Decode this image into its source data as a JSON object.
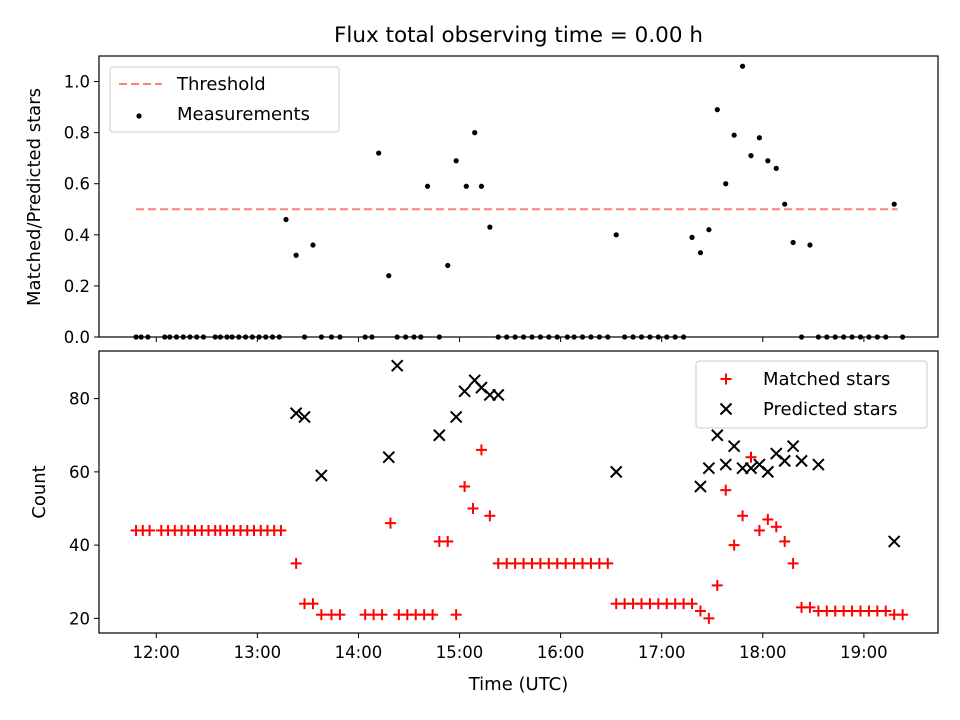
{
  "title": "Flux total observing time = 0.00 h",
  "x_axis": {
    "label": "Time (UTC)",
    "ticks": [
      {
        "label": "12:00",
        "h": 12
      },
      {
        "label": "13:00",
        "h": 13
      },
      {
        "label": "14:00",
        "h": 14
      },
      {
        "label": "15:00",
        "h": 15
      },
      {
        "label": "16:00",
        "h": 16
      },
      {
        "label": "17:00",
        "h": 17
      },
      {
        "label": "18:00",
        "h": 18
      },
      {
        "label": "19:00",
        "h": 19
      }
    ],
    "range": [
      "11:26",
      "19:44"
    ]
  },
  "colors": {
    "threshold": "#ff7f7f",
    "measurements": "#000000",
    "matched": "#ff0000",
    "predicted": "#000000"
  },
  "chart_data": [
    {
      "type": "scatter",
      "ylabel": "Matched/Predicted stars",
      "ylim": [
        0,
        1.1
      ],
      "yticks": [
        "0.0",
        "0.2",
        "0.4",
        "0.6",
        "0.8",
        "1.0"
      ],
      "legend_position": "upper-left",
      "threshold": {
        "name": "Threshold",
        "value": 0.5,
        "x_start": "11:48",
        "x_end": "19:20"
      },
      "series": [
        {
          "name": "Measurements",
          "x": [
            "11:48",
            "11:51",
            "11:55",
            "12:05",
            "12:08",
            "12:12",
            "12:16",
            "12:20",
            "12:24",
            "12:28",
            "12:35",
            "12:38",
            "12:42",
            "12:45",
            "12:49",
            "12:53",
            "12:57",
            "13:01",
            "13:05",
            "13:09",
            "13:13",
            "13:17",
            "13:23",
            "13:28",
            "13:33",
            "13:38",
            "13:44",
            "13:49",
            "14:04",
            "14:08",
            "14:12",
            "14:18",
            "14:23",
            "14:28",
            "14:33",
            "14:37",
            "14:41",
            "14:48",
            "14:53",
            "14:58",
            "15:04",
            "15:09",
            "15:13",
            "15:18",
            "15:23",
            "15:28",
            "15:33",
            "15:38",
            "15:43",
            "15:48",
            "15:53",
            "15:58",
            "16:04",
            "16:08",
            "16:13",
            "16:18",
            "16:23",
            "16:28",
            "16:33",
            "16:38",
            "16:43",
            "16:48",
            "16:53",
            "16:58",
            "17:03",
            "17:08",
            "17:13",
            "17:18",
            "17:23",
            "17:28",
            "17:33",
            "17:38",
            "17:43",
            "17:48",
            "17:53",
            "17:58",
            "18:03",
            "18:08",
            "18:13",
            "18:18",
            "18:23",
            "18:28",
            "18:33",
            "18:38",
            "18:43",
            "18:48",
            "18:53",
            "18:58",
            "19:03",
            "19:08",
            "19:13",
            "19:18",
            "19:23"
          ],
          "y": [
            0,
            0,
            0,
            0,
            0,
            0,
            0,
            0,
            0,
            0,
            0,
            0,
            0,
            0,
            0,
            0,
            0,
            0,
            0,
            0,
            0,
            0.46,
            0.32,
            0,
            0.36,
            0,
            0,
            0,
            0,
            0,
            0.72,
            0.24,
            0,
            0,
            0,
            0,
            0.59,
            0,
            0.28,
            0.69,
            0.59,
            0.8,
            0.59,
            0.43,
            0,
            0,
            0,
            0,
            0,
            0,
            0,
            0,
            0,
            0,
            0,
            0,
            0,
            0,
            0.4,
            0,
            0,
            0,
            0,
            0,
            0,
            0,
            0,
            0.39,
            0.33,
            0.42,
            0.89,
            0.6,
            0.79,
            1.06,
            0.71,
            0.78,
            0.69,
            0.66,
            0.52,
            0.37,
            0,
            0.36,
            0,
            0,
            0,
            0,
            0,
            0,
            0,
            0,
            0,
            0.52,
            0
          ]
        }
      ]
    },
    {
      "type": "scatter",
      "ylabel": "Count",
      "ylim": [
        16,
        93
      ],
      "yticks": [
        "20",
        "40",
        "60",
        "80"
      ],
      "legend_position": "upper-right",
      "series": [
        {
          "name": "Matched stars",
          "marker": "+",
          "x": [
            "11:48",
            "11:52",
            "11:56",
            "12:03",
            "12:07",
            "12:11",
            "12:15",
            "12:19",
            "12:23",
            "12:27",
            "12:31",
            "12:35",
            "12:38",
            "12:42",
            "12:46",
            "12:50",
            "12:54",
            "12:58",
            "13:02",
            "13:06",
            "13:10",
            "13:14",
            "13:23",
            "13:28",
            "13:33",
            "13:38",
            "13:44",
            "13:49",
            "14:04",
            "14:09",
            "14:14",
            "14:19",
            "14:24",
            "14:29",
            "14:34",
            "14:39",
            "14:44",
            "14:48",
            "14:53",
            "14:58",
            "15:03",
            "15:08",
            "15:13",
            "15:18",
            "15:23",
            "15:28",
            "15:33",
            "15:38",
            "15:43",
            "15:48",
            "15:53",
            "15:58",
            "16:03",
            "16:08",
            "16:13",
            "16:18",
            "16:23",
            "16:28",
            "16:33",
            "16:38",
            "16:43",
            "16:48",
            "16:53",
            "16:58",
            "17:03",
            "17:08",
            "17:13",
            "17:18",
            "17:23",
            "17:28",
            "17:33",
            "17:38",
            "17:43",
            "17:48",
            "17:53",
            "17:58",
            "18:03",
            "18:08",
            "18:13",
            "18:18",
            "18:23",
            "18:28",
            "18:33",
            "18:38",
            "18:43",
            "18:48",
            "18:53",
            "18:58",
            "19:03",
            "19:08",
            "19:13",
            "19:18",
            "19:23"
          ],
          "y": [
            44,
            44,
            44,
            44,
            44,
            44,
            44,
            44,
            44,
            44,
            44,
            44,
            44,
            44,
            44,
            44,
            44,
            44,
            44,
            44,
            44,
            44,
            35,
            24,
            24,
            21,
            21,
            21,
            21,
            21,
            21,
            46,
            21,
            21,
            21,
            21,
            21,
            41,
            41,
            21,
            56,
            50,
            66,
            48,
            35,
            35,
            35,
            35,
            35,
            35,
            35,
            35,
            35,
            35,
            35,
            35,
            35,
            35,
            24,
            24,
            24,
            24,
            24,
            24,
            24,
            24,
            24,
            24,
            22,
            20,
            29,
            55,
            40,
            48,
            64,
            44,
            47,
            45,
            41,
            35,
            23,
            23,
            22,
            22,
            22,
            22,
            22,
            22,
            22,
            22,
            22,
            21,
            21
          ]
        },
        {
          "name": "Predicted stars",
          "marker": "x",
          "x": [
            "13:23",
            "13:28",
            "13:38",
            "14:18",
            "14:23",
            "14:48",
            "14:58",
            "15:03",
            "15:09",
            "15:13",
            "15:18",
            "15:23",
            "16:33",
            "17:23",
            "17:28",
            "17:33",
            "17:38",
            "17:43",
            "17:48",
            "17:53",
            "17:58",
            "18:03",
            "18:08",
            "18:13",
            "18:18",
            "18:23",
            "18:33",
            "19:18"
          ],
          "y": [
            76,
            75,
            59,
            64,
            89,
            70,
            75,
            82,
            85,
            83,
            81,
            81,
            60,
            56,
            61,
            70,
            62,
            67,
            61,
            61,
            62,
            60,
            65,
            63,
            67,
            63,
            62,
            41
          ]
        }
      ]
    }
  ]
}
